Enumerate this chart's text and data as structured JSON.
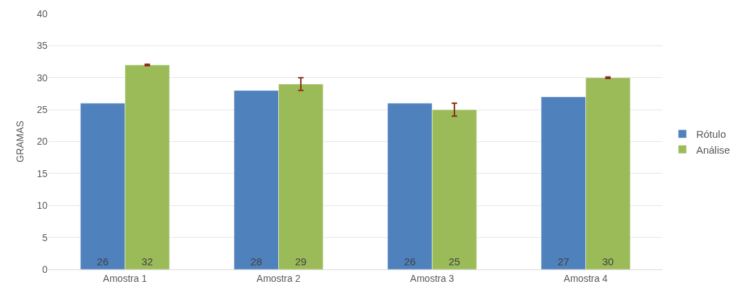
{
  "chart_data": {
    "type": "bar",
    "ylabel": "GRAMAS",
    "categories": [
      "Amostra 1",
      "Amostra 2",
      "Amostra 3",
      "Amostra 4"
    ],
    "series": [
      {
        "name": "Rótulo",
        "color": "#4f81bd",
        "values": [
          26,
          28,
          26,
          27
        ]
      },
      {
        "name": "Análise",
        "color": "#9bbb59",
        "values": [
          32,
          29,
          25,
          30
        ],
        "errors": [
          0.1,
          1,
          1,
          0.1
        ]
      }
    ],
    "ylim": [
      0,
      40
    ],
    "yticks": [
      0,
      5,
      10,
      15,
      20,
      25,
      30,
      35,
      40
    ],
    "grid": "y",
    "legend": "right",
    "data_labels": true
  }
}
